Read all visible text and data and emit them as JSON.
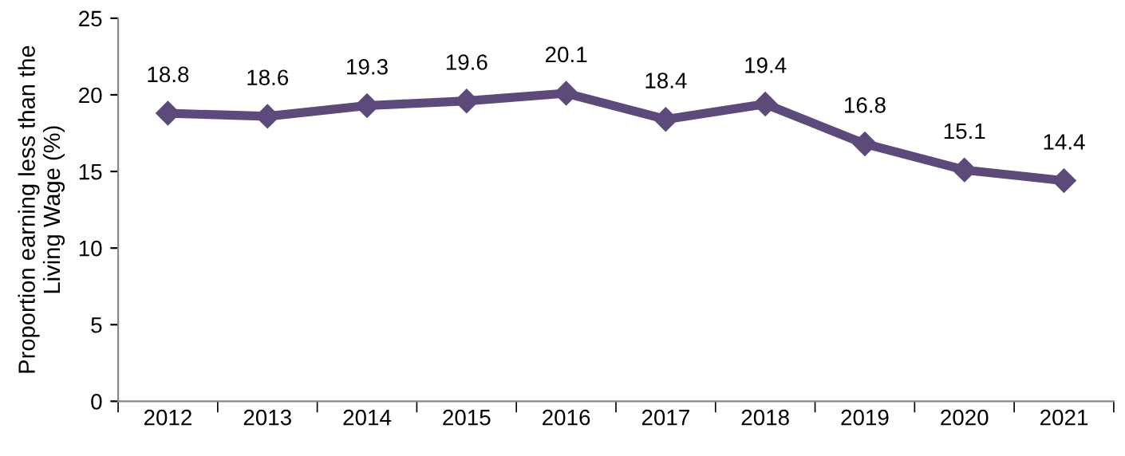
{
  "chart_data": {
    "type": "line",
    "ylabel": "Proportion earning less than the Living Wage (%)",
    "categories": [
      "2012",
      "2013",
      "2014",
      "2015",
      "2016",
      "2017",
      "2018",
      "2019",
      "2020",
      "2021"
    ],
    "series": [
      {
        "color": "#5b4a7a",
        "values": [
          18.8,
          18.6,
          19.3,
          19.6,
          20.1,
          18.4,
          19.4,
          16.8,
          15.1,
          14.4
        ]
      }
    ],
    "ylim": [
      0,
      25
    ],
    "yticks": [
      0,
      5,
      10,
      15,
      20,
      25
    ],
    "grid": false,
    "legend": false,
    "marker": "diamond",
    "line_style": "solid",
    "data_labels": true
  }
}
